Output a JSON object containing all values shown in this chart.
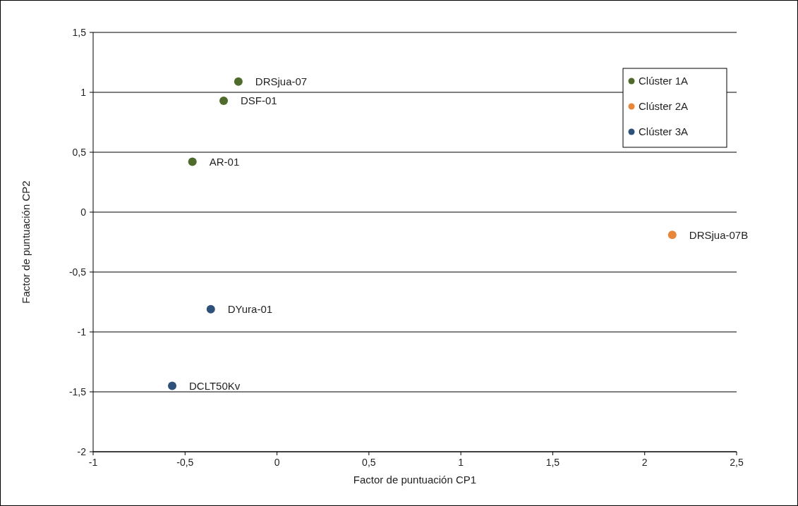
{
  "chart_data": {
    "type": "scatter",
    "xlabel": "Factor de puntuación CP1",
    "ylabel": "Factor de puntuación CP2",
    "xlim": [
      -1,
      2.5
    ],
    "xticks": [
      -1,
      {
        "value": -0.5,
        "label": "-0,5"
      },
      0,
      {
        "value": 0.5,
        "label": "0,5"
      },
      1,
      {
        "value": 1.5,
        "label": "1,5"
      },
      2,
      {
        "value": 2.5,
        "label": "2,5"
      }
    ],
    "ylim": [
      -2,
      1.5
    ],
    "yticks": [
      -2,
      {
        "value": -1.5,
        "label": "-1,5"
      },
      -1,
      {
        "value": -0.5,
        "label": "-0,5"
      },
      0,
      {
        "value": 0.5,
        "label": "0,5"
      },
      1,
      {
        "value": 1.5,
        "label": "1,5"
      }
    ],
    "grid": "y",
    "legend": "top right",
    "marker": "circle",
    "series": [
      {
        "name": "Clúster 1A",
        "color": "#4e6b2c",
        "x": [
          -0.21,
          -0.29,
          -0.46
        ],
        "values": [
          1.09,
          0.93,
          0.42
        ]
      },
      {
        "name": "Clúster 2A",
        "color": "#e8873a",
        "x": [
          2.15
        ],
        "values": [
          -0.19
        ]
      },
      {
        "name": "Clúster 3A",
        "color": "#2e5179",
        "x": [
          -0.36,
          -0.57
        ],
        "values": [
          -0.81,
          -1.45
        ]
      }
    ],
    "annotations": [
      {
        "text": "DRSjua-07",
        "x": -0.21,
        "y": 1.09
      },
      {
        "text": "DSF-01",
        "x": -0.29,
        "y": 0.93
      },
      {
        "text": "AR-01",
        "x": -0.46,
        "y": 0.42
      },
      {
        "text": "DRSjua-07B",
        "x": 2.15,
        "y": -0.19
      },
      {
        "text": "DYura-01",
        "x": -0.36,
        "y": -0.81
      },
      {
        "text": "DCLT50Kv",
        "x": -0.57,
        "y": -1.45
      }
    ]
  }
}
